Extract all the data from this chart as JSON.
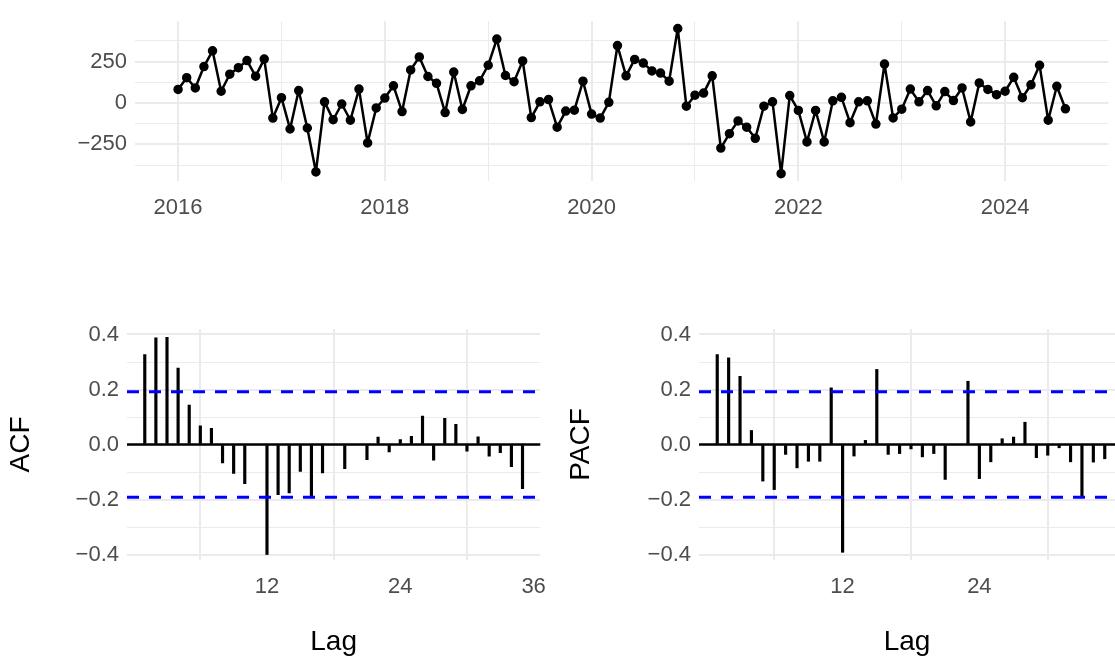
{
  "chart_data": [
    {
      "type": "line",
      "x": [
        "2016-01",
        "2016-02",
        "2016-03",
        "2016-04",
        "2016-05",
        "2016-06",
        "2016-07",
        "2016-08",
        "2016-09",
        "2016-10",
        "2016-11",
        "2016-12",
        "2017-01",
        "2017-02",
        "2017-03",
        "2017-04",
        "2017-05",
        "2017-06",
        "2017-07",
        "2017-08",
        "2017-09",
        "2017-10",
        "2017-11",
        "2017-12",
        "2018-01",
        "2018-02",
        "2018-03",
        "2018-04",
        "2018-05",
        "2018-06",
        "2018-07",
        "2018-08",
        "2018-09",
        "2018-10",
        "2018-11",
        "2018-12",
        "2019-01",
        "2019-02",
        "2019-03",
        "2019-04",
        "2019-05",
        "2019-06",
        "2019-07",
        "2019-08",
        "2019-09",
        "2019-10",
        "2019-11",
        "2019-12",
        "2020-01",
        "2020-02",
        "2020-03",
        "2020-04",
        "2020-05",
        "2020-06",
        "2020-07",
        "2020-08",
        "2020-09",
        "2020-10",
        "2020-11",
        "2020-12",
        "2021-01",
        "2021-02",
        "2021-03",
        "2021-04",
        "2021-05",
        "2021-06",
        "2021-07",
        "2021-08",
        "2021-09",
        "2021-10",
        "2021-11",
        "2021-12",
        "2022-01",
        "2022-02",
        "2022-03",
        "2022-04",
        "2022-05",
        "2022-06",
        "2022-07",
        "2022-08",
        "2022-09",
        "2022-10",
        "2022-11",
        "2022-12",
        "2023-01",
        "2023-02",
        "2023-03",
        "2023-04",
        "2023-05",
        "2023-06",
        "2023-07",
        "2023-08",
        "2023-09",
        "2023-10",
        "2023-11",
        "2023-12",
        "2024-01",
        "2024-02",
        "2024-03",
        "2024-04",
        "2024-05",
        "2024-06",
        "2024-07",
        "2024-08"
      ],
      "values": [
        82,
        153,
        91,
        220,
        315,
        71,
        174,
        213,
        256,
        162,
        265,
        -91,
        32,
        -157,
        75,
        -151,
        -416,
        7,
        -101,
        -6,
        -104,
        84,
        -241,
        -30,
        30,
        104,
        -52,
        200,
        278,
        160,
        119,
        -58,
        187,
        -39,
        104,
        134,
        228,
        386,
        166,
        129,
        254,
        -88,
        7,
        21,
        -146,
        -49,
        -43,
        132,
        -67,
        -91,
        4,
        347,
        164,
        263,
        241,
        194,
        181,
        132,
        450,
        -19,
        47,
        60,
        164,
        -272,
        -185,
        -108,
        -146,
        -213,
        -19,
        7,
        -427,
        45,
        -45,
        -235,
        -45,
        -235,
        13,
        34,
        -119,
        7,
        13,
        -127,
        235,
        -90,
        -37,
        84,
        7,
        75,
        -17,
        69,
        15,
        91,
        -114,
        121,
        82,
        50,
        71,
        155,
        32,
        110,
        228,
        -104,
        101,
        -35
      ],
      "color": "#000000",
      "marker": "circle",
      "line_style": "solid",
      "grid": true,
      "legend": false,
      "xlim": [
        "2015-08",
        "2025-01"
      ],
      "xticks": [
        "2016",
        {
          "value": "2017",
          "label": null
        },
        "2018",
        {
          "value": "2019",
          "label": null
        },
        "2020",
        {
          "value": "2021",
          "label": null
        },
        "2022",
        {
          "value": "2023",
          "label": null
        },
        "2024"
      ],
      "ylim": [
        -471,
        494
      ],
      "yticks": [
        {
          "value": -375,
          "label": null
        },
        {
          "value": -250,
          "label": "−250"
        },
        {
          "value": -125,
          "label": null
        },
        0,
        {
          "value": 125,
          "label": null
        },
        250,
        {
          "value": 375,
          "label": null
        }
      ]
    },
    {
      "type": "bar",
      "x": [
        1,
        2,
        3,
        4,
        5,
        6,
        7,
        8,
        9,
        10,
        11,
        12,
        13,
        14,
        15,
        16,
        17,
        18,
        19,
        20,
        21,
        22,
        23,
        24,
        25,
        26,
        27,
        28,
        29,
        30,
        31,
        32,
        33,
        34,
        35
      ],
      "values": [
        0.327,
        0.388,
        0.39,
        0.278,
        0.143,
        0.068,
        0.059,
        -0.067,
        -0.105,
        -0.142,
        null,
        -0.4,
        -0.182,
        -0.176,
        -0.098,
        -0.188,
        -0.103,
        0,
        -0.088,
        0,
        -0.055,
        0.027,
        -0.027,
        0.018,
        0.03,
        0.103,
        -0.057,
        0.095,
        0.073,
        -0.024,
        0.028,
        -0.042,
        -0.03,
        -0.081,
        -0.161
      ],
      "color": "#000000",
      "grid": true,
      "legend": false,
      "xlabel": "Lag",
      "ylabel": "ACF",
      "xlim": [
        -0.6,
        36.6
      ],
      "xticks": [
        12,
        24,
        36
      ],
      "ylim": [
        -0.42,
        0.42
      ],
      "yticks": [
        {
          "value": -0.4,
          "label": "−0.4"
        },
        {
          "value": -0.3,
          "label": null
        },
        {
          "value": -0.2,
          "label": "−0.2"
        },
        {
          "value": -0.1,
          "label": null
        },
        {
          "value": 0,
          "label": "0.0"
        },
        {
          "value": 0.1,
          "label": null
        },
        0.2,
        {
          "value": 0.3,
          "label": null
        },
        0.4
      ],
      "ref_lines": [
        {
          "axis": "y",
          "value": 0,
          "color": "#000000",
          "line_style": "solid"
        },
        {
          "axis": "y",
          "value": 0.192,
          "color": "#0000ff",
          "line_style": "dashed"
        },
        {
          "axis": "y",
          "value": -0.192,
          "color": "#0000ff",
          "line_style": "dashed"
        }
      ]
    },
    {
      "type": "bar",
      "x": [
        1,
        2,
        3,
        4,
        5,
        6,
        7,
        8,
        9,
        10,
        11,
        12,
        13,
        14,
        15,
        16,
        17,
        18,
        19,
        20,
        21,
        22,
        23,
        24,
        25,
        26,
        27,
        28,
        29,
        30,
        31,
        32,
        33,
        34,
        35
      ],
      "values": [
        0.327,
        0.315,
        0.248,
        0.051,
        -0.133,
        -0.164,
        -0.036,
        -0.085,
        -0.061,
        -0.061,
        0.206,
        -0.392,
        -0.042,
        0.015,
        0.273,
        -0.036,
        -0.033,
        -0.016,
        -0.045,
        -0.033,
        -0.127,
        null,
        0.23,
        -0.124,
        -0.063,
        0.021,
        0.027,
        0.081,
        -0.048,
        -0.039,
        -0.012,
        -0.063,
        -0.188,
        -0.064,
        -0.052
      ],
      "color": "#000000",
      "grid": true,
      "legend": false,
      "xlabel": "Lag",
      "ylabel": "PACF",
      "xlim": [
        -0.6,
        35.9
      ],
      "xticks": [
        12,
        24
      ],
      "ylim": [
        -0.42,
        0.42
      ],
      "yticks": [
        {
          "value": -0.4,
          "label": "−0.4"
        },
        {
          "value": -0.3,
          "label": null
        },
        {
          "value": -0.2,
          "label": "−0.2"
        },
        {
          "value": -0.1,
          "label": null
        },
        {
          "value": 0,
          "label": "0.0"
        },
        {
          "value": 0.1,
          "label": null
        },
        0.2,
        {
          "value": 0.3,
          "label": null
        },
        0.4
      ],
      "ref_lines": [
        {
          "axis": "y",
          "value": 0,
          "color": "#000000",
          "line_style": "solid"
        },
        {
          "axis": "y",
          "value": 0.192,
          "color": "#0000ff",
          "line_style": "dashed"
        },
        {
          "axis": "y",
          "value": -0.192,
          "color": "#0000ff",
          "line_style": "dashed"
        }
      ]
    }
  ]
}
